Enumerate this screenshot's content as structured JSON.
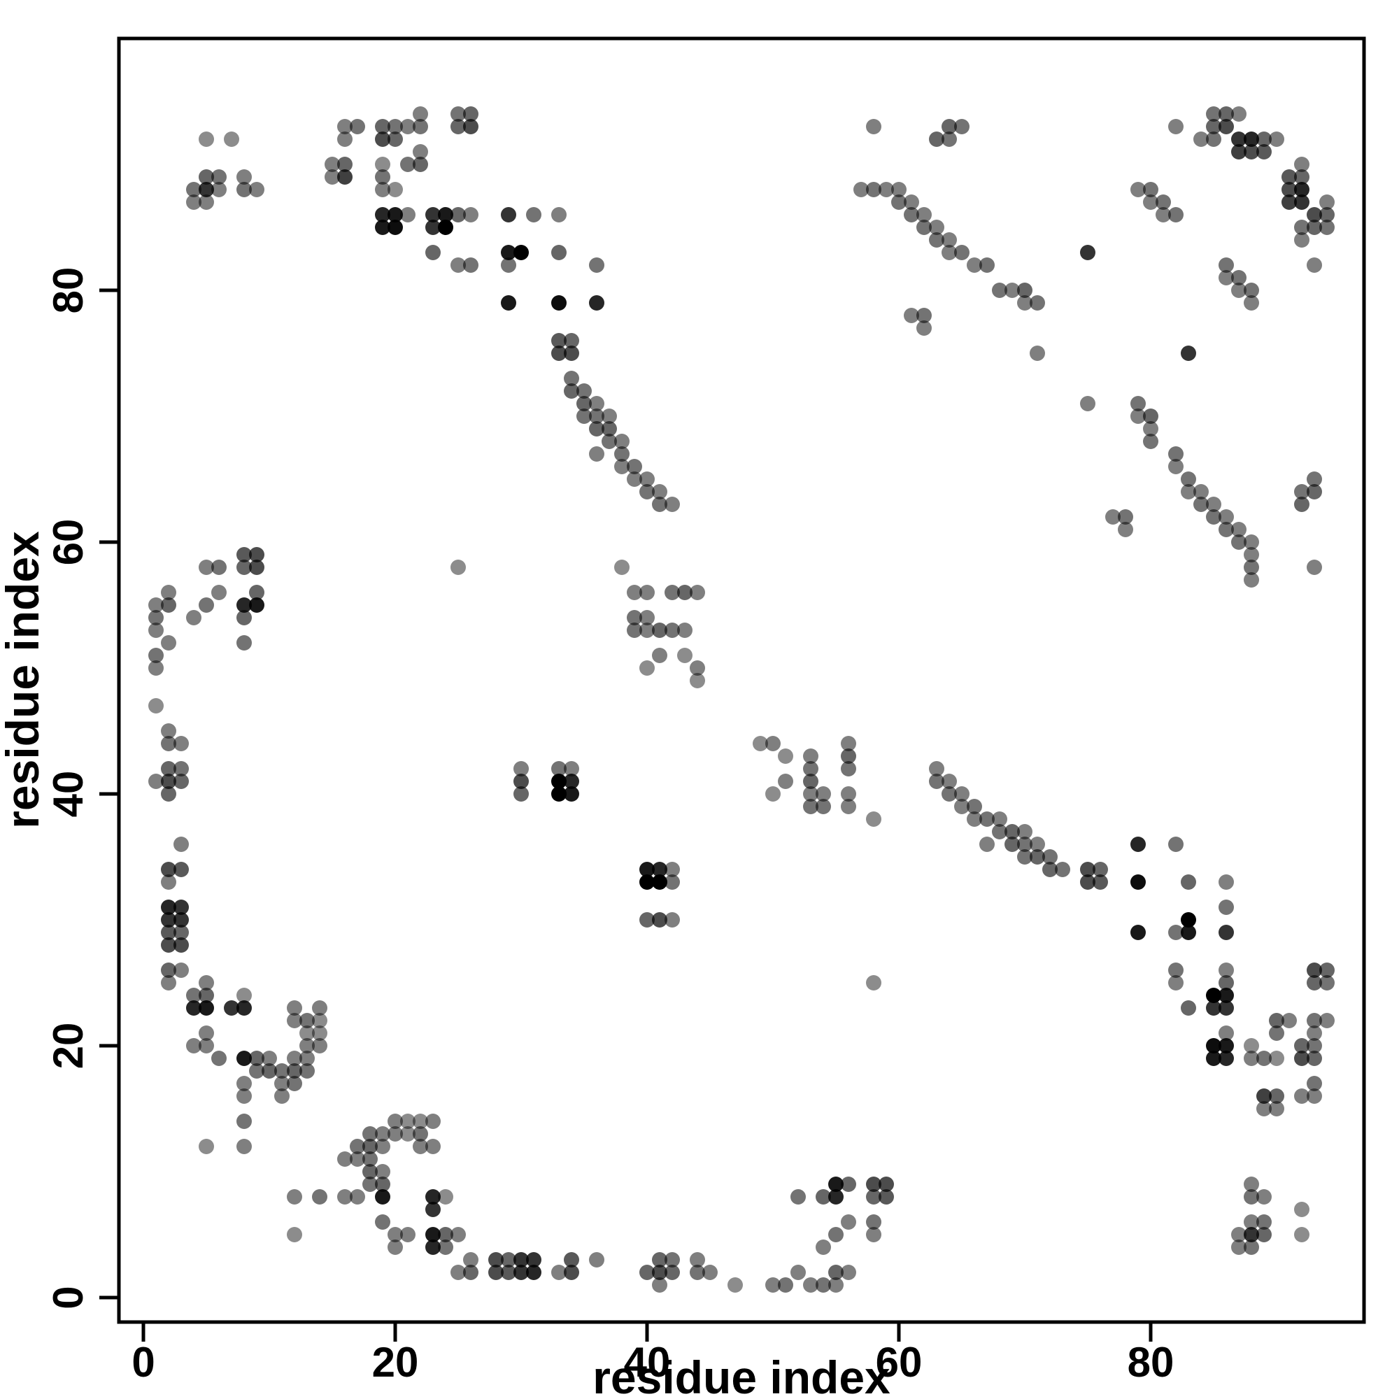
{
  "chart_data": {
    "type": "scatter",
    "title": "",
    "xlabel": "residue index",
    "ylabel": "residue index",
    "xlim": [
      -2,
      99
    ],
    "ylim": [
      -2,
      99
    ],
    "x_ticks": [
      0,
      20,
      40,
      60,
      80
    ],
    "y_ticks": [
      0,
      20,
      40,
      60,
      80
    ],
    "grid": false,
    "legend": false,
    "symmetric": true,
    "marker": {
      "shape": "circle",
      "radius_px": 11,
      "color": "#000000",
      "shade_meaning": "fill opacity 0-1, darker = stronger contact"
    },
    "points": [
      [
        5,
        92,
        0.45
      ],
      [
        7,
        92,
        0.45
      ],
      [
        4,
        87,
        0.5
      ],
      [
        4,
        88,
        0.55
      ],
      [
        5,
        87,
        0.5
      ],
      [
        5,
        88,
        0.8
      ],
      [
        5,
        89,
        0.6
      ],
      [
        6,
        88,
        0.5
      ],
      [
        6,
        89,
        0.55
      ],
      [
        8,
        88,
        0.55
      ],
      [
        8,
        89,
        0.5
      ],
      [
        9,
        88,
        0.5
      ],
      [
        15,
        89,
        0.5
      ],
      [
        15,
        90,
        0.5
      ],
      [
        16,
        89,
        0.75
      ],
      [
        16,
        90,
        0.6
      ],
      [
        16,
        92,
        0.5
      ],
      [
        16,
        93,
        0.5
      ],
      [
        17,
        93,
        0.55
      ],
      [
        19,
        92,
        0.7
      ],
      [
        19,
        93,
        0.6
      ],
      [
        20,
        92,
        0.6
      ],
      [
        20,
        93,
        0.55
      ],
      [
        19,
        88,
        0.5
      ],
      [
        19,
        89,
        0.55
      ],
      [
        20,
        88,
        0.45
      ],
      [
        19,
        90,
        0.45
      ],
      [
        19,
        85,
        0.9
      ],
      [
        19,
        86,
        0.85
      ],
      [
        20,
        85,
        0.95
      ],
      [
        20,
        86,
        0.9
      ],
      [
        21,
        86,
        0.5
      ],
      [
        21,
        90,
        0.55
      ],
      [
        22,
        90,
        0.6
      ],
      [
        22,
        91,
        0.5
      ],
      [
        23,
        85,
        0.8
      ],
      [
        23,
        86,
        0.8
      ],
      [
        24,
        85,
        1
      ],
      [
        24,
        86,
        0.9
      ],
      [
        25,
        86,
        0.6
      ],
      [
        26,
        86,
        0.5
      ],
      [
        23,
        83,
        0.6
      ],
      [
        25,
        82,
        0.5
      ],
      [
        26,
        82,
        0.55
      ],
      [
        21,
        93,
        0.5
      ],
      [
        22,
        93,
        0.55
      ],
      [
        22,
        94,
        0.5
      ],
      [
        25,
        93,
        0.6
      ],
      [
        26,
        93,
        0.7
      ],
      [
        25,
        94,
        0.55
      ],
      [
        26,
        94,
        0.6
      ],
      [
        29,
        86,
        0.8
      ],
      [
        31,
        86,
        0.55
      ],
      [
        33,
        86,
        0.5
      ],
      [
        29,
        83,
        0.9
      ],
      [
        30,
        83,
        1
      ],
      [
        33,
        83,
        0.6
      ],
      [
        29,
        82,
        0.55
      ],
      [
        29,
        79,
        0.9
      ],
      [
        33,
        79,
        0.95
      ],
      [
        36,
        79,
        0.85
      ],
      [
        36,
        82,
        0.55
      ],
      [
        33,
        75,
        0.7
      ],
      [
        33,
        76,
        0.65
      ],
      [
        34,
        75,
        0.7
      ],
      [
        34,
        76,
        0.6
      ],
      [
        34,
        72,
        0.6
      ],
      [
        34,
        73,
        0.55
      ],
      [
        35,
        70,
        0.55
      ],
      [
        35,
        71,
        0.6
      ],
      [
        35,
        72,
        0.55
      ],
      [
        36,
        69,
        0.6
      ],
      [
        36,
        70,
        0.55
      ],
      [
        36,
        71,
        0.5
      ],
      [
        37,
        68,
        0.55
      ],
      [
        37,
        69,
        0.6
      ],
      [
        37,
        70,
        0.5
      ],
      [
        36,
        67,
        0.5
      ],
      [
        38,
        66,
        0.5
      ],
      [
        38,
        67,
        0.55
      ],
      [
        38,
        68,
        0.5
      ],
      [
        39,
        65,
        0.5
      ],
      [
        39,
        66,
        0.55
      ],
      [
        40,
        64,
        0.55
      ],
      [
        40,
        65,
        0.5
      ],
      [
        41,
        63,
        0.55
      ],
      [
        41,
        64,
        0.5
      ],
      [
        42,
        63,
        0.5
      ],
      [
        25,
        58,
        0.45
      ],
      [
        38,
        58,
        0.45
      ],
      [
        39,
        56,
        0.5
      ],
      [
        40,
        56,
        0.5
      ],
      [
        42,
        56,
        0.55
      ],
      [
        43,
        56,
        0.6
      ],
      [
        44,
        56,
        0.5
      ],
      [
        39,
        54,
        0.55
      ],
      [
        40,
        54,
        0.5
      ],
      [
        39,
        53,
        0.55
      ],
      [
        40,
        53,
        0.5
      ],
      [
        41,
        53,
        0.6
      ],
      [
        42,
        53,
        0.55
      ],
      [
        43,
        53,
        0.5
      ],
      [
        41,
        51,
        0.5
      ],
      [
        43,
        51,
        0.45
      ],
      [
        40,
        50,
        0.45
      ],
      [
        44,
        50,
        0.5
      ],
      [
        44,
        49,
        0.45
      ],
      [
        30,
        40,
        0.6
      ],
      [
        30,
        41,
        0.7
      ],
      [
        30,
        42,
        0.5
      ],
      [
        33,
        40,
        1
      ],
      [
        33,
        41,
        1
      ],
      [
        33,
        42,
        0.55
      ],
      [
        34,
        40,
        0.9
      ],
      [
        34,
        41,
        0.85
      ],
      [
        34,
        42,
        0.5
      ],
      [
        57,
        88,
        0.5
      ],
      [
        58,
        88,
        0.55
      ],
      [
        59,
        88,
        0.5
      ],
      [
        60,
        88,
        0.5
      ],
      [
        60,
        87,
        0.55
      ],
      [
        61,
        87,
        0.5
      ],
      [
        61,
        86,
        0.55
      ],
      [
        62,
        86,
        0.5
      ],
      [
        62,
        85,
        0.55
      ],
      [
        63,
        85,
        0.5
      ],
      [
        63,
        84,
        0.55
      ],
      [
        64,
        84,
        0.5
      ],
      [
        64,
        83,
        0.5
      ],
      [
        65,
        83,
        0.55
      ],
      [
        66,
        82,
        0.5
      ],
      [
        67,
        82,
        0.55
      ],
      [
        68,
        80,
        0.55
      ],
      [
        69,
        80,
        0.5
      ],
      [
        70,
        80,
        0.6
      ],
      [
        70,
        79,
        0.5
      ],
      [
        71,
        79,
        0.55
      ],
      [
        71,
        75,
        0.5
      ],
      [
        75,
        83,
        0.8
      ],
      [
        61,
        78,
        0.5
      ],
      [
        62,
        78,
        0.55
      ],
      [
        62,
        77,
        0.5
      ],
      [
        79,
        88,
        0.5
      ],
      [
        80,
        88,
        0.55
      ],
      [
        80,
        87,
        0.5
      ],
      [
        81,
        87,
        0.55
      ],
      [
        81,
        86,
        0.5
      ],
      [
        82,
        86,
        0.55
      ],
      [
        84,
        92,
        0.5
      ],
      [
        85,
        92,
        0.55
      ],
      [
        87,
        92,
        0.8
      ],
      [
        87,
        91,
        0.75
      ],
      [
        88,
        91,
        0.7
      ],
      [
        88,
        92,
        0.85
      ],
      [
        89,
        91,
        0.65
      ],
      [
        89,
        92,
        0.6
      ],
      [
        90,
        92,
        0.5
      ],
      [
        82,
        93,
        0.5
      ],
      [
        85,
        93,
        0.6
      ],
      [
        85,
        94,
        0.55
      ],
      [
        86,
        93,
        0.7
      ],
      [
        86,
        94,
        0.6
      ],
      [
        87,
        94,
        0.5
      ],
      [
        58,
        93,
        0.5
      ],
      [
        63,
        92,
        0.6
      ],
      [
        64,
        92,
        0.55
      ],
      [
        64,
        93,
        0.6
      ],
      [
        65,
        93,
        0.55
      ],
      [
        2,
        25,
        0.5
      ],
      [
        2,
        26,
        0.6
      ],
      [
        3,
        26,
        0.5
      ],
      [
        2,
        28,
        0.7
      ],
      [
        3,
        28,
        0.7
      ],
      [
        2,
        29,
        0.65
      ],
      [
        3,
        29,
        0.6
      ],
      [
        2,
        30,
        0.8
      ],
      [
        3,
        30,
        0.8
      ],
      [
        2,
        31,
        0.85
      ],
      [
        3,
        31,
        0.8
      ],
      [
        2,
        33,
        0.5
      ],
      [
        2,
        34,
        0.7
      ],
      [
        3,
        34,
        0.65
      ],
      [
        3,
        36,
        0.5
      ],
      [
        1,
        41,
        0.5
      ],
      [
        2,
        40,
        0.6
      ],
      [
        2,
        41,
        0.7
      ],
      [
        2,
        42,
        0.6
      ],
      [
        3,
        41,
        0.6
      ],
      [
        3,
        42,
        0.55
      ],
      [
        2,
        44,
        0.55
      ],
      [
        3,
        44,
        0.5
      ],
      [
        2,
        45,
        0.5
      ],
      [
        1,
        47,
        0.45
      ],
      [
        1,
        50,
        0.5
      ],
      [
        1,
        51,
        0.55
      ],
      [
        2,
        52,
        0.5
      ],
      [
        1,
        53,
        0.5
      ],
      [
        1,
        54,
        0.55
      ],
      [
        1,
        55,
        0.5
      ],
      [
        2,
        55,
        0.6
      ],
      [
        2,
        56,
        0.5
      ],
      [
        4,
        54,
        0.5
      ],
      [
        5,
        55,
        0.55
      ],
      [
        8,
        52,
        0.55
      ],
      [
        8,
        54,
        0.6
      ],
      [
        8,
        55,
        0.85
      ],
      [
        9,
        55,
        0.9
      ],
      [
        5,
        58,
        0.5
      ],
      [
        6,
        58,
        0.55
      ],
      [
        8,
        58,
        0.6
      ],
      [
        9,
        58,
        0.7
      ],
      [
        8,
        59,
        0.65
      ],
      [
        9,
        59,
        0.7
      ],
      [
        6,
        56,
        0.5
      ],
      [
        9,
        56,
        0.6
      ],
      [
        4,
        23,
        0.85
      ],
      [
        5,
        23,
        0.9
      ],
      [
        7,
        23,
        0.8
      ],
      [
        8,
        23,
        0.85
      ],
      [
        6,
        19,
        0.55
      ],
      [
        8,
        19,
        0.9
      ],
      [
        9,
        19,
        0.6
      ],
      [
        9,
        18,
        0.55
      ],
      [
        10,
        18,
        0.6
      ],
      [
        11,
        18,
        0.55
      ],
      [
        10,
        19,
        0.5
      ],
      [
        8,
        17,
        0.5
      ],
      [
        8,
        14,
        0.55
      ],
      [
        12,
        22,
        0.5
      ],
      [
        12,
        23,
        0.5
      ],
      [
        13,
        22,
        0.55
      ],
      [
        14,
        22,
        0.45
      ],
      [
        11,
        16,
        0.5
      ],
      [
        11,
        17,
        0.5
      ],
      [
        12,
        17,
        0.55
      ],
      [
        12,
        18,
        0.6
      ],
      [
        13,
        18,
        0.55
      ],
      [
        13,
        19,
        0.5
      ],
      [
        13,
        20,
        0.5
      ],
      [
        14,
        20,
        0.5
      ],
      [
        14,
        21,
        0.45
      ],
      [
        5,
        12,
        0.45
      ],
      [
        8,
        12,
        0.5
      ],
      [
        8,
        16,
        0.5
      ],
      [
        12,
        19,
        0.5
      ],
      [
        13,
        21,
        0.45
      ],
      [
        14,
        23,
        0.5
      ],
      [
        8,
        24,
        0.45
      ],
      [
        4,
        24,
        0.55
      ],
      [
        5,
        24,
        0.6
      ],
      [
        5,
        25,
        0.5
      ],
      [
        4,
        20,
        0.5
      ],
      [
        5,
        20,
        0.5
      ],
      [
        5,
        21,
        0.5
      ]
    ]
  }
}
